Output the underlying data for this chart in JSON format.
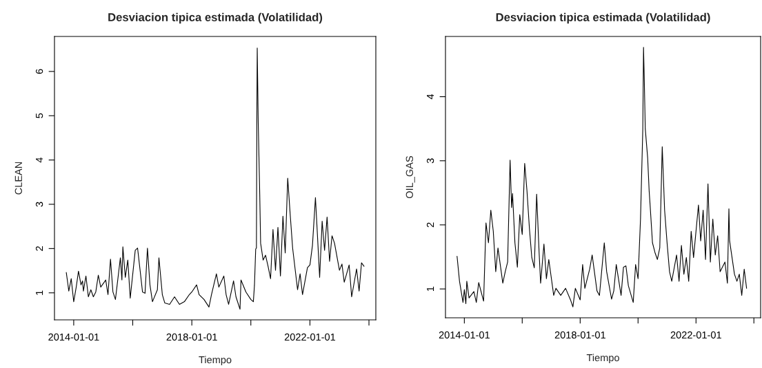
{
  "chart_data": [
    {
      "type": "line",
      "title": "Desviacion tipica estimada (Volatilidad)",
      "xlabel": "Tiempo",
      "ylabel": "CLEAN",
      "grid": false,
      "legend": false,
      "xlim": [
        "2013-05-08",
        "2024-03-26"
      ],
      "ylim": [
        0.39,
        6.79
      ],
      "xticks": [
        {
          "value": "2014-01-01",
          "label": "2014-01-01"
        },
        {
          "value": "2016-01-01",
          "label": null
        },
        {
          "value": "2018-01-01",
          "label": "2018-01-01"
        },
        {
          "value": "2020-01-01",
          "label": null
        },
        {
          "value": "2022-01-01",
          "label": "2022-01-01"
        },
        {
          "value": "2024-01-01",
          "label": null
        }
      ],
      "yticks": [
        1,
        2,
        3,
        4,
        5,
        6
      ],
      "series": [
        {
          "color": "#000000",
          "x": [
            "2013-10-01",
            "2013-10-20",
            "2013-11-01",
            "2013-12-01",
            "2014-01-01",
            "2014-02-01",
            "2014-03-01",
            "2014-04-01",
            "2014-04-20",
            "2014-05-01",
            "2014-06-01",
            "2014-07-01",
            "2014-08-01",
            "2014-09-01",
            "2014-10-01",
            "2014-11-01",
            "2014-12-01",
            "2015-02-01",
            "2015-03-01",
            "2015-04-01",
            "2015-05-01",
            "2015-06-01",
            "2015-08-01",
            "2015-08-20",
            "2015-09-01",
            "2015-10-01",
            "2015-11-01",
            "2015-12-01",
            "2016-02-01",
            "2016-03-01",
            "2016-04-01",
            "2016-05-01",
            "2016-06-01",
            "2016-07-01",
            "2016-08-01",
            "2016-09-01",
            "2016-11-01",
            "2016-11-20",
            "2017-01-01",
            "2017-02-01",
            "2017-04-01",
            "2017-06-01",
            "2017-08-01",
            "2017-10-01",
            "2017-12-01",
            "2018-01-01",
            "2018-03-01",
            "2018-04-01",
            "2018-06-01",
            "2018-08-01",
            "2018-09-01",
            "2018-11-01",
            "2018-12-01",
            "2019-02-01",
            "2019-03-01",
            "2019-04-01",
            "2019-06-01",
            "2019-07-01",
            "2019-08-20",
            "2019-09-01",
            "2019-11-01",
            "2020-01-01",
            "2020-02-01",
            "2020-02-15",
            "2020-03-01",
            "2020-03-10",
            "2020-03-15",
            "2020-03-20",
            "2020-04-01",
            "2020-04-20",
            "2020-05-01",
            "2020-06-01",
            "2020-07-01",
            "2020-08-01",
            "2020-09-01",
            "2020-10-01",
            "2020-11-01",
            "2020-12-01",
            "2021-01-01",
            "2021-02-01",
            "2021-03-01",
            "2021-04-01",
            "2021-05-01",
            "2021-06-01",
            "2021-08-01",
            "2021-09-01",
            "2021-10-01",
            "2021-12-01",
            "2022-01-01",
            "2022-02-01",
            "2022-03-10",
            "2022-04-01",
            "2022-05-01",
            "2022-06-01",
            "2022-07-01",
            "2022-08-01",
            "2022-09-01",
            "2022-10-01",
            "2022-11-01",
            "2023-01-01",
            "2023-02-01",
            "2023-03-01",
            "2023-05-01",
            "2023-06-01",
            "2023-08-01",
            "2023-09-01",
            "2023-10-01",
            "2023-11-01"
          ],
          "values": [
            1.46,
            1.21,
            1.04,
            1.32,
            0.8,
            1.13,
            1.49,
            1.18,
            1.27,
            1.04,
            1.38,
            0.91,
            1.07,
            0.91,
            1.02,
            1.4,
            1.13,
            1.29,
            0.96,
            1.76,
            1.02,
            0.85,
            1.79,
            1.29,
            2.04,
            1.35,
            1.74,
            0.88,
            1.96,
            2.01,
            1.51,
            1.02,
            0.99,
            2.01,
            1.18,
            0.8,
            1.07,
            1.79,
            0.96,
            0.77,
            0.74,
            0.91,
            0.74,
            0.8,
            0.96,
            1.02,
            1.18,
            0.96,
            0.85,
            0.68,
            0.96,
            1.43,
            1.13,
            1.38,
            0.96,
            0.74,
            1.27,
            0.91,
            0.63,
            1.29,
            1.02,
            0.85,
            0.8,
            1.18,
            1.99,
            2.01,
            4.84,
            6.53,
            4.89,
            3.23,
            2.12,
            1.74,
            1.85,
            1.6,
            1.32,
            2.43,
            1.51,
            2.48,
            1.38,
            2.73,
            1.9,
            3.59,
            2.79,
            2.01,
            1.07,
            1.43,
            0.96,
            1.57,
            1.63,
            2.07,
            3.15,
            2.4,
            1.35,
            2.62,
            1.96,
            2.71,
            1.71,
            2.29,
            2.12,
            1.51,
            1.65,
            1.24,
            1.63,
            0.91,
            1.54,
            1.04,
            1.68,
            1.6
          ]
        }
      ]
    },
    {
      "type": "line",
      "title": "Desviacion tipica estimada (Volatilidad)",
      "xlabel": "Tiempo",
      "ylabel": "OIL_GAS",
      "grid": false,
      "legend": false,
      "xlim": [
        "2013-05-08",
        "2024-03-26"
      ],
      "ylim": [
        0.55,
        4.94
      ],
      "xticks": [
        {
          "value": "2014-01-01",
          "label": "2014-01-01"
        },
        {
          "value": "2016-01-01",
          "label": null
        },
        {
          "value": "2018-01-01",
          "label": "2018-01-01"
        },
        {
          "value": "2020-01-01",
          "label": null
        },
        {
          "value": "2022-01-01",
          "label": "2022-01-01"
        },
        {
          "value": "2024-01-01",
          "label": null
        }
      ],
      "yticks": [
        1,
        2,
        3,
        4
      ],
      "series": [
        {
          "color": "#000000",
          "x": [
            "2013-10-01",
            "2013-11-01",
            "2013-12-15",
            "2014-01-01",
            "2014-01-20",
            "2014-02-01",
            "2014-03-01",
            "2014-05-01",
            "2014-06-01",
            "2014-07-01",
            "2014-09-01",
            "2014-10-01",
            "2014-11-01",
            "2014-12-01",
            "2015-01-01",
            "2015-02-01",
            "2015-03-01",
            "2015-05-01",
            "2015-06-01",
            "2015-07-01",
            "2015-08-01",
            "2015-08-20",
            "2015-09-01",
            "2015-10-01",
            "2015-11-01",
            "2015-12-01",
            "2016-01-01",
            "2016-02-01",
            "2016-03-01",
            "2016-04-01",
            "2016-05-01",
            "2016-06-01",
            "2016-07-01",
            "2016-08-01",
            "2016-08-20",
            "2016-10-01",
            "2016-11-01",
            "2016-12-01",
            "2017-02-01",
            "2017-03-01",
            "2017-05-01",
            "2017-07-01",
            "2017-09-01",
            "2017-10-01",
            "2017-11-01",
            "2018-01-01",
            "2018-02-01",
            "2018-03-01",
            "2018-05-01",
            "2018-06-01",
            "2018-08-01",
            "2018-09-01",
            "2018-11-01",
            "2018-12-01",
            "2019-02-01",
            "2019-03-01",
            "2019-04-01",
            "2019-06-01",
            "2019-07-01",
            "2019-08-01",
            "2019-09-01",
            "2019-11-01",
            "2019-12-01",
            "2020-01-01",
            "2020-02-01",
            "2020-03-01",
            "2020-03-10",
            "2020-03-20",
            "2020-04-01",
            "2020-05-01",
            "2020-05-20",
            "2020-06-01",
            "2020-07-01",
            "2020-08-01",
            "2020-09-01",
            "2020-10-01",
            "2020-11-01",
            "2020-12-01",
            "2021-01-01",
            "2021-02-01",
            "2021-03-01",
            "2021-05-01",
            "2021-06-01",
            "2021-07-01",
            "2021-08-01",
            "2021-09-01",
            "2021-10-01",
            "2021-11-01",
            "2021-12-01",
            "2022-02-01",
            "2022-03-01",
            "2022-04-01",
            "2022-05-01",
            "2022-06-01",
            "2022-07-01",
            "2022-08-01",
            "2022-09-01",
            "2022-10-01",
            "2022-11-01",
            "2023-01-01",
            "2023-02-01",
            "2023-02-20",
            "2023-03-01",
            "2023-05-01",
            "2023-06-01",
            "2023-07-01",
            "2023-08-01",
            "2023-09-01",
            "2023-10-01"
          ],
          "values": [
            1.51,
            1.12,
            0.79,
            0.99,
            0.77,
            1.12,
            0.86,
            0.96,
            0.79,
            1.1,
            0.81,
            2.03,
            1.72,
            2.23,
            1.9,
            1.27,
            1.64,
            1.09,
            1.27,
            1.42,
            3.01,
            2.27,
            2.49,
            1.72,
            1.34,
            2.16,
            1.85,
            2.96,
            2.53,
            1.94,
            1.49,
            1.33,
            2.48,
            1.57,
            1.09,
            1.7,
            1.16,
            1.46,
            0.9,
            1.01,
            0.9,
            1.01,
            0.83,
            0.72,
            1.01,
            0.83,
            1.38,
            1.01,
            1.31,
            1.53,
            0.97,
            0.9,
            1.72,
            1.27,
            0.84,
            0.97,
            1.38,
            0.9,
            1.34,
            1.36,
            1.05,
            0.79,
            1.38,
            1.16,
            2.09,
            3.5,
            4.77,
            4.24,
            3.5,
            3.05,
            2.53,
            2.31,
            1.72,
            1.57,
            1.46,
            1.64,
            3.22,
            2.23,
            1.72,
            1.27,
            1.12,
            1.53,
            1.12,
            1.68,
            1.23,
            1.49,
            1.12,
            1.9,
            1.49,
            2.31,
            1.75,
            2.23,
            1.46,
            2.64,
            1.42,
            2.09,
            1.53,
            1.83,
            1.27,
            1.42,
            1.09,
            2.25,
            1.75,
            1.23,
            1.12,
            1.23,
            0.9,
            1.31,
            1.01
          ]
        }
      ]
    }
  ]
}
